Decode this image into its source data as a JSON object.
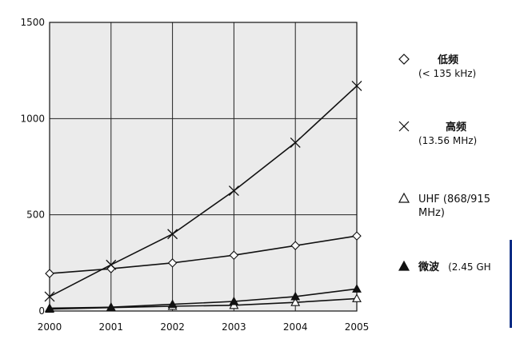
{
  "chart_data": {
    "type": "line",
    "x": [
      2000,
      2001,
      2002,
      2003,
      2004,
      2005
    ],
    "ylim": [
      0,
      1500
    ],
    "yticks": [
      0,
      500,
      1000,
      1500
    ],
    "grid": true,
    "legend_position": "right",
    "series": [
      {
        "name": "低频",
        "name_sub": "(< 135 kHz)",
        "marker": "diamond",
        "values": [
          195,
          220,
          250,
          290,
          340,
          390
        ]
      },
      {
        "name": "高频",
        "name_sub": "(13.56 MHz)",
        "marker": "x",
        "values": [
          75,
          240,
          400,
          625,
          875,
          1170
        ]
      },
      {
        "name": "UHF (868/915",
        "name_sub": "MHz)",
        "marker": "triangle-open",
        "values": [
          10,
          18,
          25,
          30,
          45,
          65
        ]
      },
      {
        "name": "微波",
        "name_sub": "(2.45 GH",
        "marker": "triangle-filled",
        "values": [
          15,
          20,
          35,
          50,
          75,
          115
        ]
      }
    ],
    "colors": {
      "line": "#111111",
      "grid": "#222222",
      "plot_bg": "#ebebeb",
      "edge_accent": "#0b2b84"
    }
  }
}
